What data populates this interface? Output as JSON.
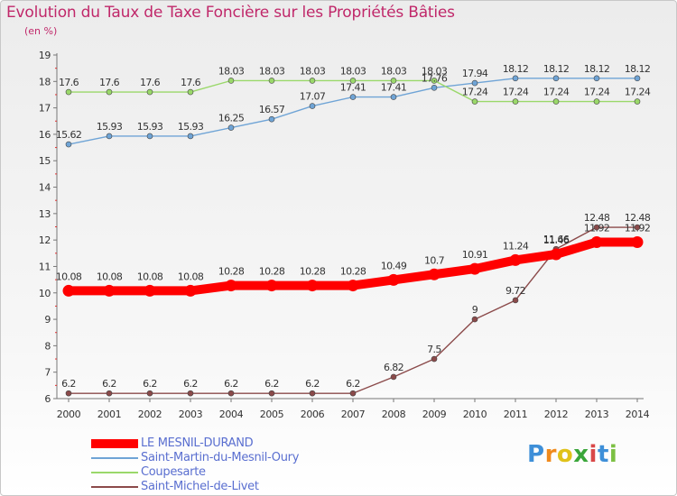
{
  "header": {
    "title": "Evolution du Taux de Taxe Foncière sur les Propriétés Bâties",
    "unit": "(en %)"
  },
  "chart_data": {
    "type": "line",
    "title": "Evolution du Taux de Taxe Foncière sur les Propriétés Bâties",
    "ylabel": "(en %)",
    "xlabel": "",
    "x": [
      "2000",
      "2001",
      "2002",
      "2003",
      "2004",
      "2005",
      "2006",
      "2007",
      "2008",
      "2009",
      "2010",
      "2011",
      "2012",
      "2013",
      "2014"
    ],
    "y_ticks": [
      "6",
      "7",
      "8",
      "9",
      "10",
      "11",
      "12",
      "13",
      "14",
      "15",
      "16",
      "17",
      "18",
      "19"
    ],
    "ylim": [
      6,
      19
    ],
    "grid": false,
    "legend_position": "bottom-left",
    "series": [
      {
        "name": "LE MESNIL-DURAND",
        "color": "#ff0000",
        "values": [
          10.08,
          10.08,
          10.08,
          10.08,
          10.28,
          10.28,
          10.28,
          10.28,
          10.49,
          10.7,
          10.91,
          11.24,
          11.46,
          11.92,
          11.92
        ],
        "labels": [
          "10.08",
          "10.08",
          "10.08",
          "10.08",
          "10.28",
          "10.28",
          "10.28",
          "10.28",
          "10.49",
          "10.7",
          "10.91",
          "11.24",
          "11.46",
          "11.92",
          "11.92"
        ]
      },
      {
        "name": "Saint-Martin-du-Mesnil-Oury",
        "color": "#6fa4d6",
        "values": [
          15.62,
          15.93,
          15.93,
          15.93,
          16.25,
          16.57,
          17.07,
          17.41,
          17.41,
          17.76,
          17.94,
          18.12,
          18.12,
          18.12,
          18.12
        ],
        "labels": [
          "15.62",
          "15.93",
          "15.93",
          "15.93",
          "16.25",
          "16.57",
          "17.07",
          "17.41",
          "17.41",
          "17.76",
          "17.94",
          "18.12",
          "18.12",
          "18.12",
          "18.12"
        ]
      },
      {
        "name": "Coupesarte",
        "color": "#9ad86a",
        "values": [
          17.6,
          17.6,
          17.6,
          17.6,
          18.03,
          18.03,
          18.03,
          18.03,
          18.03,
          18.03,
          17.24,
          17.24,
          17.24,
          17.24,
          17.24
        ],
        "labels": [
          "17.6",
          "17.6",
          "17.6",
          "17.6",
          "18.03",
          "18.03",
          "18.03",
          "18.03",
          "18.03",
          "18.03",
          "17.24",
          "17.24",
          "17.24",
          "17.24",
          "17.24"
        ]
      },
      {
        "name": "Saint-Michel-de-Livet",
        "color": "#8b4a4a",
        "values": [
          6.2,
          6.2,
          6.2,
          6.2,
          6.2,
          6.2,
          6.2,
          6.2,
          6.82,
          7.5,
          9,
          9.72,
          11.66,
          12.48,
          12.48
        ],
        "labels": [
          "6.2",
          "6.2",
          "6.2",
          "6.2",
          "6.2",
          "6.2",
          "6.2",
          "6.2",
          "6.82",
          "7.5",
          "9",
          "9.72",
          "11.66",
          "12.48",
          "12.48"
        ]
      }
    ]
  },
  "logo": {
    "letters": [
      "P",
      "r",
      "o",
      "x",
      "i",
      "t",
      "i"
    ],
    "colors": [
      "#3e8fd8",
      "#f08a1c",
      "#e0c21a",
      "#3aa63a",
      "#d94848",
      "#3e8fd8",
      "#7cc043"
    ]
  }
}
